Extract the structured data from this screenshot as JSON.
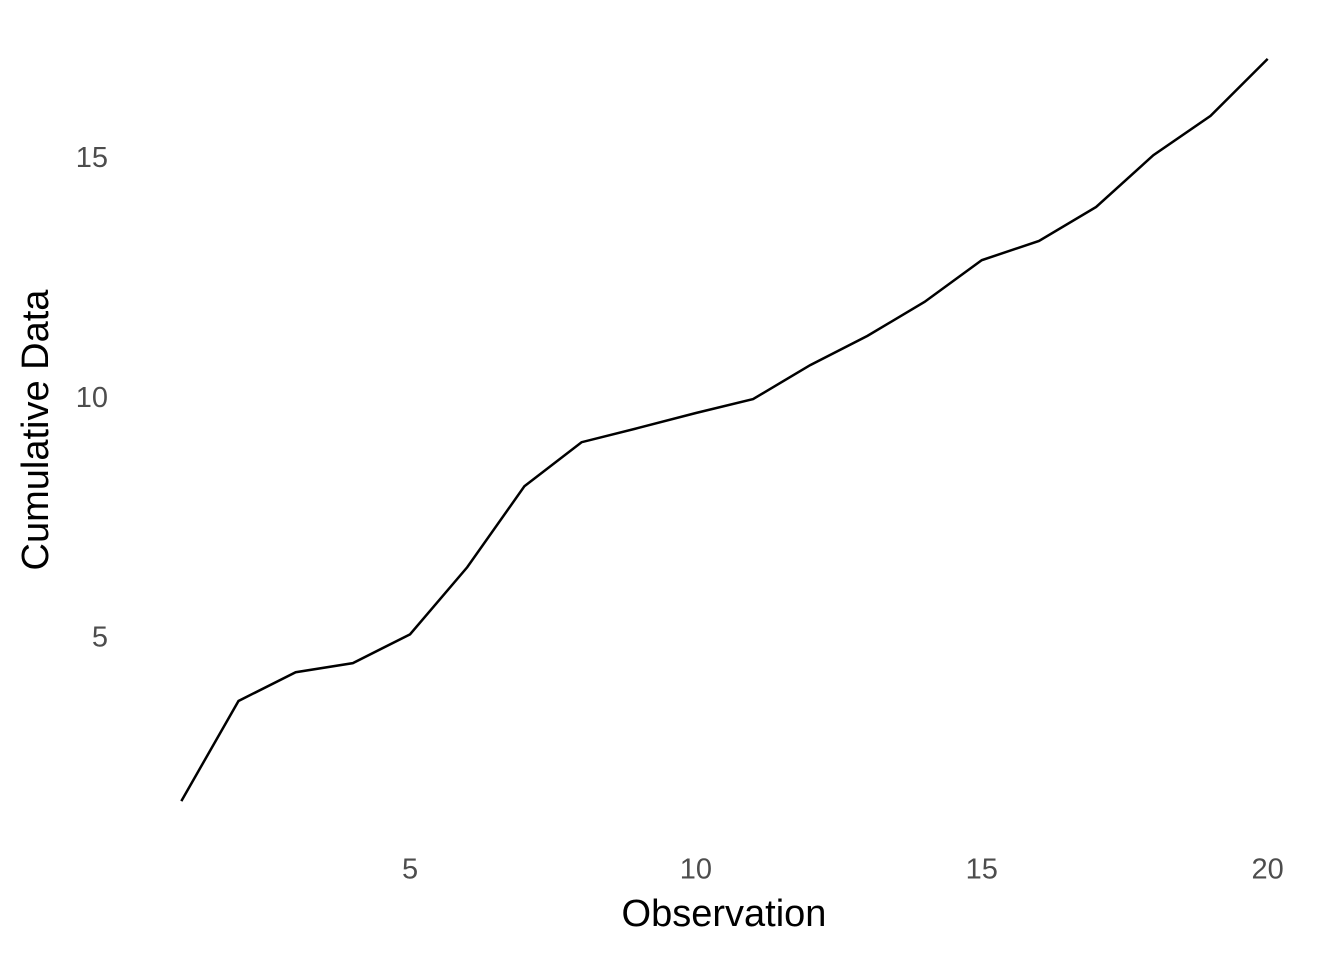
{
  "chart_data": {
    "type": "line",
    "x_label": "Observation",
    "y_label": "Cumulative Data",
    "x": [
      1,
      2,
      3,
      4,
      5,
      6,
      7,
      8,
      9,
      10,
      11,
      12,
      13,
      14,
      15,
      16,
      17,
      18,
      19,
      20
    ],
    "values": [
      1.61,
      3.7,
      4.3,
      4.49,
      5.09,
      6.49,
      8.18,
      9.1,
      9.4,
      9.71,
      10.0,
      10.71,
      11.32,
      12.03,
      12.9,
      13.3,
      14.01,
      15.09,
      15.91,
      17.1
    ],
    "color": "#000000",
    "xlim": [
      0.05,
      20.95
    ],
    "xticks": [
      5,
      10,
      15,
      20
    ],
    "ylim": [
      0.84,
      17.87
    ],
    "yticks": [
      5,
      10,
      15
    ],
    "grid": false
  }
}
